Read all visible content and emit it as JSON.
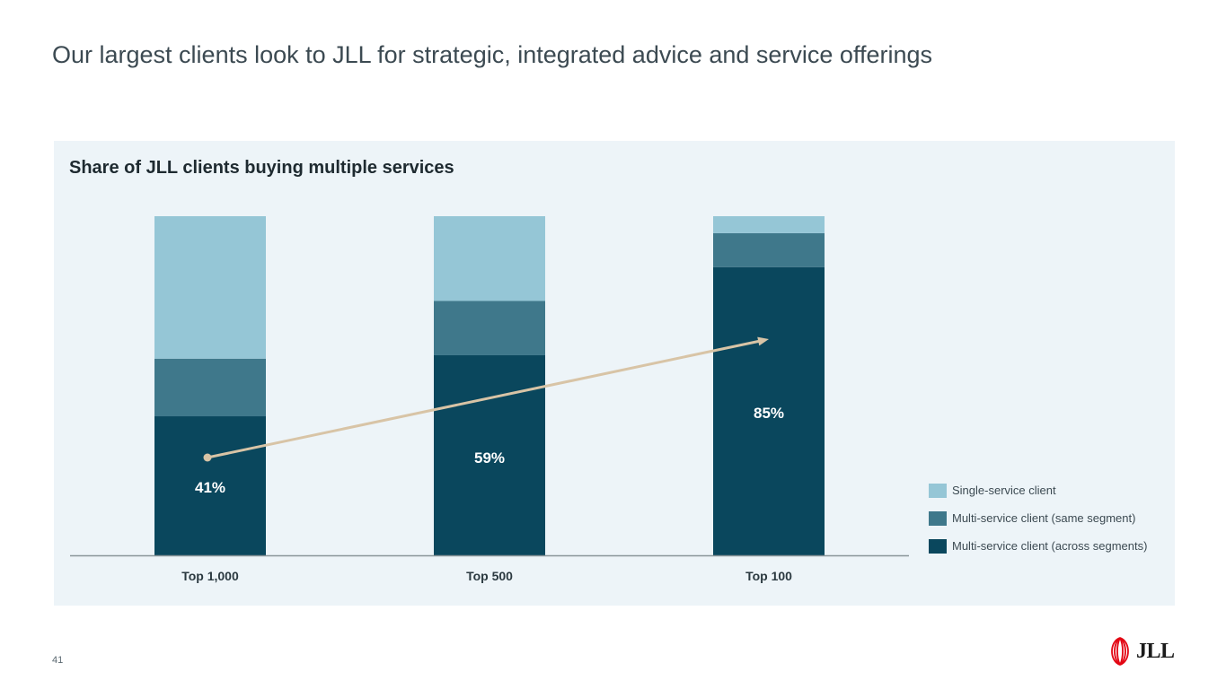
{
  "slide": {
    "title": "Our largest clients look to JLL for strategic, integrated advice and service offerings",
    "page_number": "41",
    "logo_text": "JLL"
  },
  "colors": {
    "panel_bg": "#edf4f8",
    "single": "#95c6d6",
    "same": "#3f788b",
    "across": "#0a475d",
    "trend": "#d8c4a6",
    "axis": "#8a9599",
    "brand_red": "#e30613"
  },
  "chart_data": {
    "type": "bar",
    "stacked": true,
    "title": "Share of JLL clients buying multiple services",
    "categories": [
      "Top 1,000",
      "Top 500",
      "Top 100"
    ],
    "ylim": [
      0,
      100
    ],
    "series": [
      {
        "name": "Multi-service client (across segments)",
        "values": [
          41,
          59,
          85
        ],
        "color": "#0a475d"
      },
      {
        "name": "Multi-service client (same segment)",
        "values": [
          17,
          16,
          10
        ],
        "color": "#3f788b"
      },
      {
        "name": "Single-service client",
        "values": [
          42,
          25,
          5
        ],
        "color": "#95c6d6"
      }
    ],
    "data_labels": [
      "41%",
      "59%",
      "85%"
    ],
    "trend_arrow": {
      "from": "Top 1,000",
      "to": "Top 100"
    },
    "legend_order": [
      2,
      1,
      0
    ],
    "legend_position": "right"
  }
}
